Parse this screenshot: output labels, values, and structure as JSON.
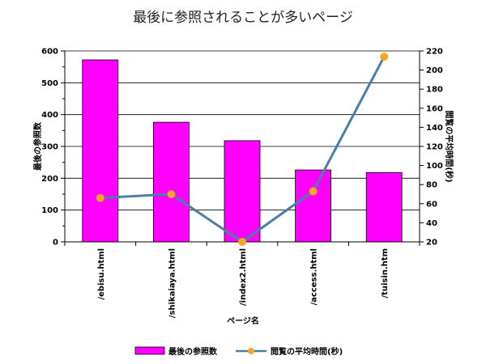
{
  "chart_data": {
    "type": "bar",
    "title": "最後に参照されることが多いページ",
    "xlabel": "ページ名",
    "ylabel": "最後の参照数",
    "y2label": "閲覧の平均時間(秒)",
    "categories": [
      "/ebisu.html",
      "/shikaiaya.html",
      "/index2.html",
      "/access.html",
      "/tuisin.htm"
    ],
    "ylim": [
      0,
      600
    ],
    "y2lim": [
      20,
      220
    ],
    "yticks": [
      0,
      100,
      200,
      300,
      400,
      500,
      600
    ],
    "y2ticks": [
      20,
      40,
      60,
      80,
      100,
      120,
      140,
      160,
      180,
      200,
      220
    ],
    "grid": true,
    "legend_position": "bottom",
    "series": [
      {
        "name": "最後の参照数",
        "type": "bar",
        "axis": "left",
        "color": "#ff00ff",
        "values": [
          572,
          376,
          318,
          226,
          218
        ]
      },
      {
        "name": "閲覧の平均時間(秒)",
        "type": "line",
        "axis": "right",
        "color": "#4a7fa8",
        "marker_color": "#f5a623",
        "values": [
          66,
          70,
          20,
          73,
          214
        ]
      }
    ]
  }
}
